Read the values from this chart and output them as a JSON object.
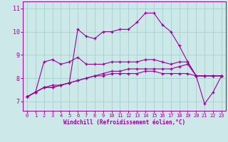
{
  "xlabel": "Windchill (Refroidissement éolien,°C)",
  "ylabel": "",
  "background_color": "#cce8e8",
  "grid_color": "#aad4d4",
  "line_color": "#990099",
  "x_values": [
    0,
    1,
    2,
    3,
    4,
    5,
    6,
    7,
    8,
    9,
    10,
    11,
    12,
    13,
    14,
    15,
    16,
    17,
    18,
    19,
    20,
    21,
    22,
    23
  ],
  "series1": [
    7.2,
    7.4,
    7.6,
    7.6,
    7.7,
    7.8,
    10.1,
    9.8,
    9.7,
    10.0,
    10.0,
    10.1,
    10.1,
    10.4,
    10.8,
    10.8,
    10.3,
    10.0,
    9.4,
    8.7,
    8.1,
    6.9,
    7.4,
    8.1
  ],
  "series2": [
    7.2,
    7.4,
    8.7,
    8.8,
    8.6,
    8.7,
    8.9,
    8.6,
    8.6,
    8.6,
    8.7,
    8.7,
    8.7,
    8.7,
    8.8,
    8.8,
    8.7,
    8.6,
    8.7,
    8.7,
    8.1,
    8.1,
    8.1,
    8.1
  ],
  "series3": [
    7.2,
    7.4,
    7.6,
    7.6,
    7.7,
    7.8,
    7.9,
    8.0,
    8.1,
    8.1,
    8.2,
    8.2,
    8.2,
    8.2,
    8.3,
    8.3,
    8.2,
    8.2,
    8.2,
    8.2,
    8.1,
    8.1,
    8.1,
    8.1
  ],
  "series4": [
    7.2,
    7.4,
    7.6,
    7.7,
    7.7,
    7.8,
    7.9,
    8.0,
    8.1,
    8.2,
    8.3,
    8.3,
    8.4,
    8.4,
    8.4,
    8.4,
    8.4,
    8.4,
    8.5,
    8.6,
    8.1,
    8.1,
    8.1,
    8.1
  ],
  "ylim": [
    6.6,
    11.3
  ],
  "yticks": [
    7,
    8,
    9,
    10,
    11
  ],
  "xticks": [
    0,
    1,
    2,
    3,
    4,
    5,
    6,
    7,
    8,
    9,
    10,
    11,
    12,
    13,
    14,
    15,
    16,
    17,
    18,
    19,
    20,
    21,
    22,
    23
  ],
  "marker": "+",
  "linewidth": 0.8,
  "markersize": 3.5
}
